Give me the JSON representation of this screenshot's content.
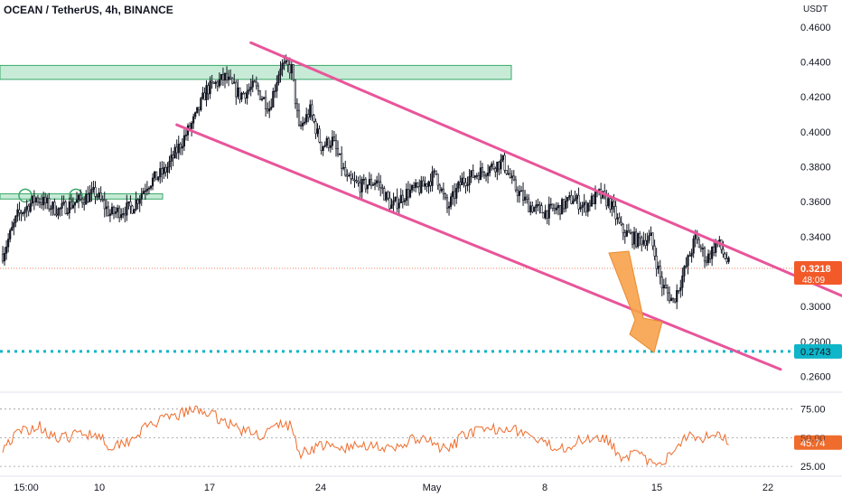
{
  "title": "OCEAN / TetherUS, 4h, BINANCE",
  "currency": "USDT",
  "price_label": "0.3218",
  "countdown": "48:09",
  "target_label": "0.2743",
  "rsi_label": "45.74",
  "colors": {
    "up": "#131722",
    "down": "#e8e8ea",
    "wick": "#131722",
    "channel": "#e8559a",
    "zone_fill": "#b9e6cd",
    "zone_stroke": "#3aa96a",
    "target_line": "#0fb5c8",
    "arrow": "#f7a24a",
    "price_badge": "#f25a2a",
    "rsi_line": "#ef6c2c",
    "axis_text": "#131722"
  },
  "icons": [
    "down-arrow-icon",
    "circle-marker-icon"
  ],
  "chart_data": {
    "type": "candlestick",
    "y_axis": {
      "ticks": [
        "0.4600",
        "0.4400",
        "0.4200",
        "0.4000",
        "0.3800",
        "0.3600",
        "0.3400",
        "0.3200",
        "0.3000",
        "0.2800",
        "0.2600"
      ],
      "range": [
        0.253,
        0.462
      ]
    },
    "x_axis": {
      "ticks": [
        "15:00",
        "10",
        "17",
        "24",
        "May",
        "8",
        "15",
        "22"
      ]
    },
    "zones": [
      {
        "low": 0.43,
        "high": 0.438
      },
      {
        "low": 0.3615,
        "high": 0.3645
      }
    ],
    "channel_lines": [
      {
        "name": "upper",
        "from": {
          "bar": 134,
          "price": 0.451
        },
        "to": {
          "bar": 460,
          "price": 0.303
        }
      },
      {
        "name": "lower",
        "from": {
          "bar": 94,
          "price": 0.404
        },
        "to": {
          "bar": 420,
          "price": 0.264
        }
      }
    ],
    "target_price": 0.2743,
    "current_price": 0.3218,
    "path_anchors": [
      [
        0,
        0.33
      ],
      [
        8,
        0.352
      ],
      [
        18,
        0.362
      ],
      [
        30,
        0.355
      ],
      [
        40,
        0.36
      ],
      [
        50,
        0.365
      ],
      [
        58,
        0.353
      ],
      [
        70,
        0.357
      ],
      [
        78,
        0.37
      ],
      [
        88,
        0.378
      ],
      [
        96,
        0.393
      ],
      [
        104,
        0.408
      ],
      [
        110,
        0.424
      ],
      [
        120,
        0.431
      ],
      [
        128,
        0.421
      ],
      [
        136,
        0.426
      ],
      [
        144,
        0.414
      ],
      [
        150,
        0.438
      ],
      [
        156,
        0.436
      ],
      [
        160,
        0.401
      ],
      [
        166,
        0.412
      ],
      [
        172,
        0.392
      ],
      [
        178,
        0.395
      ],
      [
        186,
        0.372
      ],
      [
        194,
        0.369
      ],
      [
        202,
        0.372
      ],
      [
        210,
        0.357
      ],
      [
        218,
        0.365
      ],
      [
        226,
        0.368
      ],
      [
        234,
        0.376
      ],
      [
        240,
        0.356
      ],
      [
        248,
        0.372
      ],
      [
        256,
        0.376
      ],
      [
        264,
        0.38
      ],
      [
        270,
        0.383
      ],
      [
        276,
        0.369
      ],
      [
        284,
        0.358
      ],
      [
        292,
        0.354
      ],
      [
        300,
        0.356
      ],
      [
        308,
        0.362
      ],
      [
        314,
        0.357
      ],
      [
        322,
        0.364
      ],
      [
        328,
        0.359
      ],
      [
        334,
        0.344
      ],
      [
        342,
        0.338
      ],
      [
        350,
        0.339
      ],
      [
        356,
        0.312
      ],
      [
        362,
        0.303
      ],
      [
        368,
        0.32
      ],
      [
        374,
        0.339
      ],
      [
        380,
        0.327
      ],
      [
        386,
        0.337
      ],
      [
        392,
        0.324
      ]
    ],
    "rsi": {
      "levels": [
        "75.00",
        "50.00",
        "25.00"
      ],
      "range": [
        18,
        85
      ],
      "anchors": [
        [
          0,
          42
        ],
        [
          10,
          56
        ],
        [
          20,
          60
        ],
        [
          30,
          48
        ],
        [
          42,
          54
        ],
        [
          52,
          53
        ],
        [
          58,
          42
        ],
        [
          68,
          48
        ],
        [
          80,
          62
        ],
        [
          92,
          68
        ],
        [
          100,
          73
        ],
        [
          108,
          74
        ],
        [
          118,
          66
        ],
        [
          130,
          56
        ],
        [
          140,
          52
        ],
        [
          150,
          62
        ],
        [
          156,
          60
        ],
        [
          160,
          36
        ],
        [
          172,
          44
        ],
        [
          180,
          40
        ],
        [
          190,
          42
        ],
        [
          200,
          45
        ],
        [
          210,
          38
        ],
        [
          220,
          48
        ],
        [
          230,
          47
        ],
        [
          240,
          38
        ],
        [
          250,
          54
        ],
        [
          262,
          56
        ],
        [
          272,
          60
        ],
        [
          282,
          54
        ],
        [
          292,
          44
        ],
        [
          304,
          42
        ],
        [
          316,
          50
        ],
        [
          324,
          52
        ],
        [
          334,
          34
        ],
        [
          342,
          36
        ],
        [
          350,
          28
        ],
        [
          356,
          24
        ],
        [
          362,
          40
        ],
        [
          370,
          54
        ],
        [
          378,
          50
        ],
        [
          386,
          56
        ],
        [
          392,
          46
        ]
      ]
    }
  }
}
